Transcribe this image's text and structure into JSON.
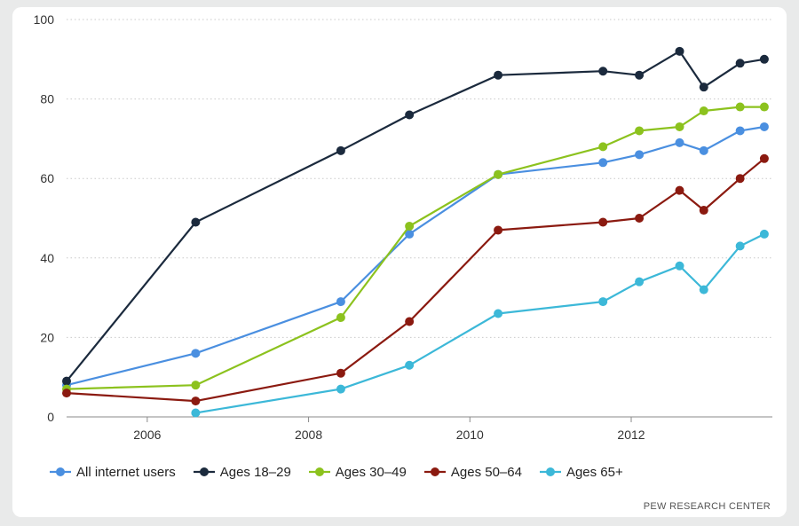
{
  "chart_data": {
    "type": "line",
    "title": "",
    "xlabel": "",
    "ylabel": "",
    "ylim": [
      0,
      100
    ],
    "y_ticks": [
      "0",
      "20",
      "40",
      "60",
      "80",
      "100"
    ],
    "x_ticks": [
      {
        "label": "2006",
        "x": 2006
      },
      {
        "label": "2008",
        "x": 2008
      },
      {
        "label": "2010",
        "x": 2010
      },
      {
        "label": "2012",
        "x": 2012
      }
    ],
    "grid": true,
    "legend_position": "bottom",
    "series": [
      {
        "name": "All internet users",
        "color": "#4a8fe0",
        "points": [
          [
            2005.0,
            8
          ],
          [
            2006.6,
            16
          ],
          [
            2008.4,
            29
          ],
          [
            2009.25,
            46
          ],
          [
            2010.35,
            61
          ],
          [
            2011.65,
            64
          ],
          [
            2012.1,
            66
          ],
          [
            2012.6,
            69
          ],
          [
            2012.9,
            67
          ],
          [
            2013.35,
            72
          ],
          [
            2013.65,
            73
          ]
        ]
      },
      {
        "name": "Ages 18–29",
        "color": "#1b2a3d",
        "points": [
          [
            2005.0,
            9
          ],
          [
            2006.6,
            49
          ],
          [
            2008.4,
            67
          ],
          [
            2009.25,
            76
          ],
          [
            2010.35,
            86
          ],
          [
            2011.65,
            87
          ],
          [
            2012.1,
            86
          ],
          [
            2012.6,
            92
          ],
          [
            2012.9,
            83
          ],
          [
            2013.35,
            89
          ],
          [
            2013.65,
            90
          ]
        ]
      },
      {
        "name": "Ages 30–49",
        "color": "#8cc21e",
        "points": [
          [
            2005.0,
            7
          ],
          [
            2006.6,
            8
          ],
          [
            2008.4,
            25
          ],
          [
            2009.25,
            48
          ],
          [
            2010.35,
            61
          ],
          [
            2011.65,
            68
          ],
          [
            2012.1,
            72
          ],
          [
            2012.6,
            73
          ],
          [
            2012.9,
            77
          ],
          [
            2013.35,
            78
          ],
          [
            2013.65,
            78
          ]
        ]
      },
      {
        "name": "Ages 50–64",
        "color": "#8b1a10",
        "points": [
          [
            2005.0,
            6
          ],
          [
            2006.6,
            4
          ],
          [
            2008.4,
            11
          ],
          [
            2009.25,
            24
          ],
          [
            2010.35,
            47
          ],
          [
            2011.65,
            49
          ],
          [
            2012.1,
            50
          ],
          [
            2012.6,
            57
          ],
          [
            2012.9,
            52
          ],
          [
            2013.35,
            60
          ],
          [
            2013.65,
            65
          ]
        ]
      },
      {
        "name": "Ages 65+",
        "color": "#3cb8d8",
        "points": [
          [
            2006.6,
            1
          ],
          [
            2008.4,
            7
          ],
          [
            2009.25,
            13
          ],
          [
            2010.35,
            26
          ],
          [
            2011.65,
            29
          ],
          [
            2012.1,
            34
          ],
          [
            2012.6,
            38
          ],
          [
            2012.9,
            32
          ],
          [
            2013.35,
            43
          ],
          [
            2013.65,
            46
          ]
        ]
      }
    ]
  },
  "source": "PEW RESEARCH CENTER"
}
